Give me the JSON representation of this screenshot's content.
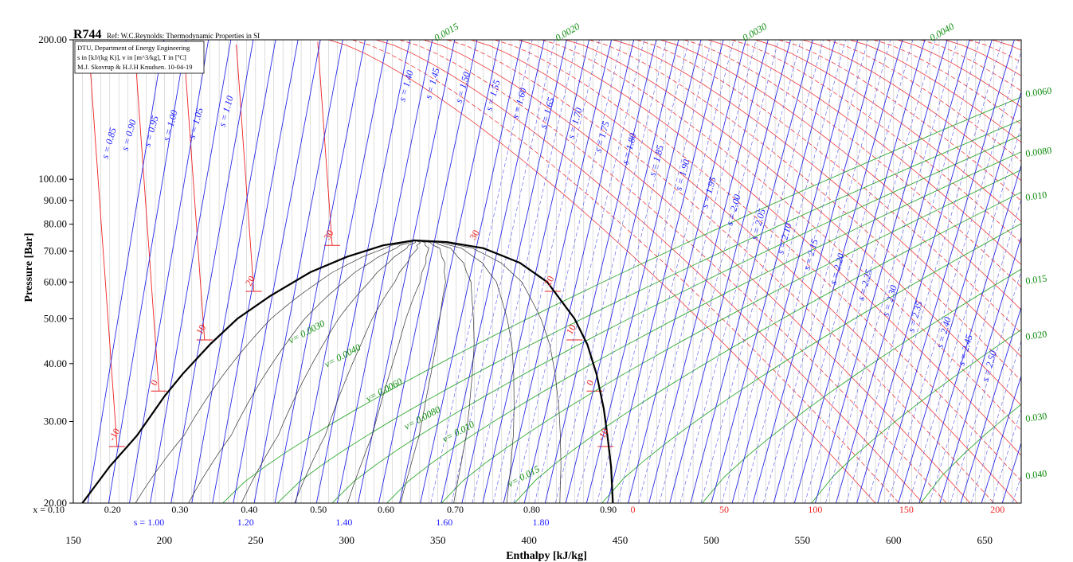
{
  "chart_data": {
    "type": "line",
    "title": "R744",
    "subtitle": "Ref: W.C.Reynolds: Thermodynamic Properties in SI",
    "info_box": [
      "DTU, Department of Energy Engineering",
      "s in [kJ/(kg K)], v in [m^3/kg], T in [ºC]",
      "M.J. Skovrup & H.J.H Knudsen. 10-04-19"
    ],
    "xlabel": "Enthalpy [kJ/kg]",
    "ylabel": "Pressure [Bar]",
    "xlim": [
      150,
      670
    ],
    "ylim": [
      20,
      200
    ],
    "y_scale": "log",
    "x_ticks": [
      "150",
      "200",
      "250",
      "300",
      "350",
      "400",
      "450",
      "500",
      "550",
      "600",
      "650"
    ],
    "y_ticks": [
      "20.00",
      "30.00",
      "40.00",
      "50.00",
      "60.00",
      "70.00",
      "80.00",
      "90.00",
      "100.00",
      "200.00"
    ],
    "quality_axis": {
      "values": [
        0.1,
        0.2,
        0.3,
        0.4,
        0.5,
        0.6,
        0.7,
        0.8,
        0.9
      ],
      "labels": [
        "x = 0.10",
        "0.20",
        "0.30",
        "0.40",
        "0.50",
        "0.60",
        "0.70",
        "0.80",
        "0.90"
      ]
    },
    "entropy_axis": {
      "values": [
        1.0,
        1.2,
        1.4,
        1.6,
        1.8
      ],
      "labels": [
        "s = 1.00",
        "1.20",
        "1.40",
        "1.60",
        "1.80"
      ]
    },
    "temperature_axis": {
      "values": [
        0,
        50,
        100,
        150,
        200
      ],
      "labels": [
        "0",
        "50",
        "100",
        "150",
        "200"
      ]
    },
    "saturation_dome": {
      "critical_point": {
        "h": 337,
        "p": 73.8
      },
      "liquid_line": [
        [
          155,
          20
        ],
        [
          170,
          24
        ],
        [
          185,
          28
        ],
        [
          200,
          34
        ],
        [
          210,
          38
        ],
        [
          225,
          44
        ],
        [
          240,
          50
        ],
        [
          258,
          56
        ],
        [
          280,
          63
        ],
        [
          300,
          68
        ],
        [
          320,
          72
        ],
        [
          337,
          73.8
        ]
      ],
      "vapor_line": [
        [
          337,
          73.8
        ],
        [
          355,
          73.2
        ],
        [
          375,
          71
        ],
        [
          395,
          66
        ],
        [
          410,
          60
        ],
        [
          425,
          50
        ],
        [
          432,
          44
        ],
        [
          437,
          38
        ],
        [
          441,
          32
        ],
        [
          443,
          28
        ],
        [
          445,
          24
        ],
        [
          446,
          20
        ]
      ]
    },
    "isotherm_labels": [
      {
        "text": "-10",
        "h": 174,
        "p": 26.5
      },
      {
        "text": "0",
        "h": 197,
        "p": 34.9
      },
      {
        "text": "10",
        "h": 222,
        "p": 45
      },
      {
        "text": "20",
        "h": 249,
        "p": 57.3
      },
      {
        "text": "30",
        "h": 292,
        "p": 72
      },
      {
        "text": "30",
        "h": 372,
        "p": 72
      },
      {
        "text": "20",
        "h": 413,
        "p": 57.3
      },
      {
        "text": "10",
        "h": 425,
        "p": 45
      },
      {
        "text": "0",
        "h": 436,
        "p": 34.9
      },
      {
        "text": "-10",
        "h": 442,
        "p": 26.5
      }
    ],
    "isentrope_labels": [
      "s = 0.85",
      "s = 0.90",
      "s = 0.95",
      "s = 1.00",
      "s = 1.05",
      "s = 1.10",
      "s = 1.40",
      "s = 1.45",
      "s = 1.50",
      "s = 1.55",
      "s = 1.60",
      "s = 1.65",
      "s = 1.70",
      "s = 1.75",
      "s = 1.80",
      "s = 1.85",
      "s = 1.90",
      "s = 1.95",
      "s = 2.00",
      "s = 2.05",
      "s = 2.10",
      "s = 2.15",
      "s = 2.20",
      "s = 2.25",
      "s = 2.30",
      "s = 2.35",
      "s = 2.40",
      "s = 2.45",
      "s = 2.50"
    ],
    "isochore_labels": [
      "v= 0.0030",
      "v= 0.0040",
      "v= 0.0060",
      "v= 0.0080",
      "v= 0.010",
      "v= 0.015"
    ],
    "isochore_labels_top": [
      "0.0015",
      "0.0020",
      "0.0030",
      "0.0040"
    ],
    "isochore_labels_right": [
      "0.0060",
      "0.0080",
      "0.010",
      "0.015",
      "0.020",
      "0.030",
      "0.040"
    ]
  }
}
